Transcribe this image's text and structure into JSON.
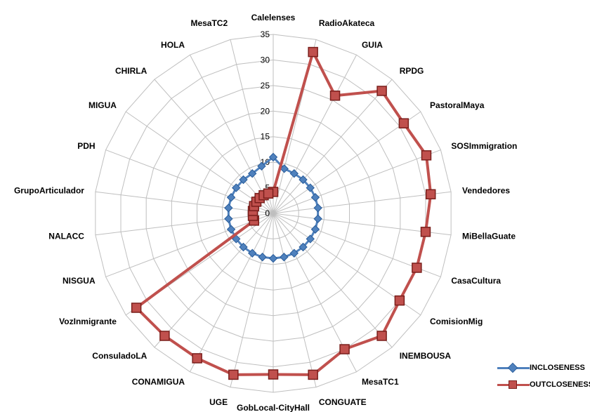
{
  "chart_data": {
    "type": "radar",
    "title": "",
    "categories": [
      "Calelenses",
      "RadioAkateca",
      "GUIA",
      "RPDG",
      "PastoralMaya",
      "SOSImmigration",
      "Vendedores",
      "MiBellaGuate",
      "CasaCultura",
      "ComisionMig",
      "INEMBOUSA",
      "MesaTC1",
      "CONGUATE",
      "GobLocal-CityHall",
      "UGE",
      "CONAMIGUA",
      "ConsuladoLA",
      "VozInmigrante",
      "NISGUA",
      "NALACC",
      "GrupoArticulador",
      "PDH",
      "MIGUA",
      "CHIRLA",
      "HOLA",
      "MesaTC2"
    ],
    "radial_ticks": [
      0,
      5,
      10,
      15,
      20,
      25,
      30,
      35
    ],
    "rlim": [
      0,
      35
    ],
    "grid": true,
    "legend_position": "bottom-right",
    "series": [
      {
        "name": "INCLOSENESS",
        "color": "#4F81BD",
        "marker": "diamond",
        "values": [
          11,
          9,
          8.8,
          8.8,
          8.8,
          8.8,
          8.8,
          8.8,
          8.8,
          8.8,
          8.8,
          8.8,
          8.8,
          8.8,
          8.8,
          8.8,
          8.8,
          8.8,
          8.8,
          8.8,
          8.8,
          8.8,
          8.8,
          8.8,
          8.8,
          9.5
        ]
      },
      {
        "name": "OUTCLOSENESS",
        "color": "#C0504D",
        "marker": "square",
        "values": [
          4.2,
          32.5,
          26,
          32,
          31,
          32,
          31,
          30,
          30,
          30,
          32,
          30,
          32.5,
          31.5,
          32.5,
          32,
          32,
          32.5,
          4,
          4,
          4,
          4,
          4,
          4,
          4,
          4
        ]
      }
    ]
  }
}
